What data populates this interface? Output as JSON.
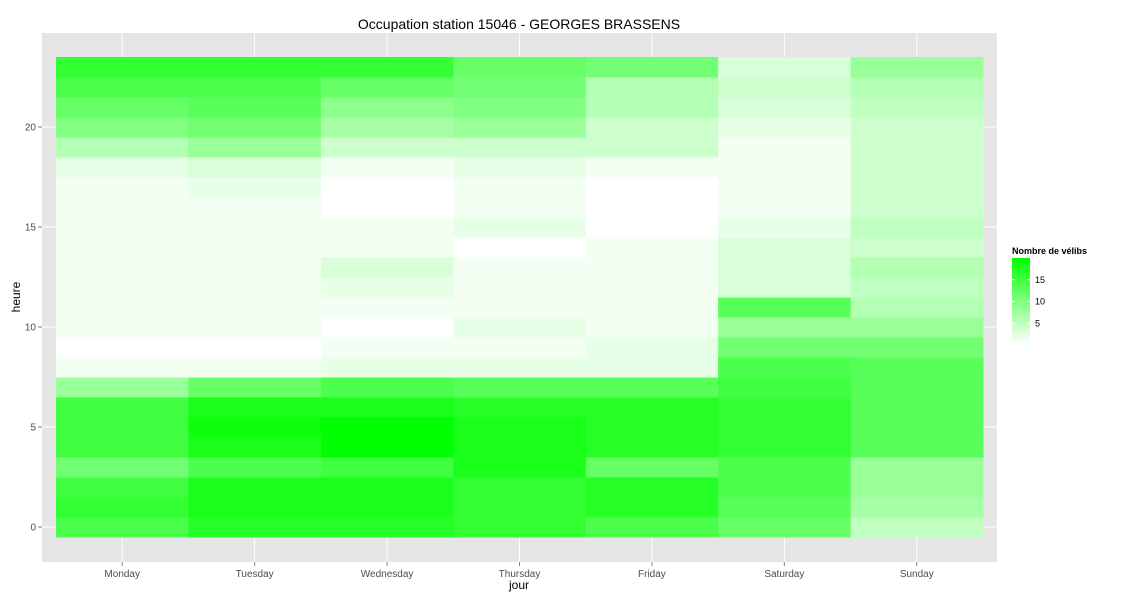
{
  "chart_data": {
    "type": "heatmap",
    "title": "Occupation station 15046 - GEORGES BRASSENS",
    "xlabel": "jour",
    "ylabel": "heure",
    "x_categories": [
      "Monday",
      "Tuesday",
      "Wednesday",
      "Thursday",
      "Friday",
      "Saturday",
      "Sunday"
    ],
    "y_hours": [
      0,
      1,
      2,
      3,
      4,
      5,
      6,
      7,
      8,
      9,
      10,
      11,
      12,
      13,
      14,
      15,
      16,
      17,
      18,
      19,
      20,
      21,
      22,
      23
    ],
    "y_ticks": [
      0,
      5,
      10,
      15,
      20
    ],
    "ylim": [
      -0.5,
      23.5
    ],
    "legend": {
      "title": "Nombre de vélibs",
      "ticks": [
        5,
        10,
        15
      ],
      "low_color": "#ffffff",
      "high_color": "#00ff00",
      "range": [
        0,
        20
      ],
      "position": "right"
    },
    "grid": true,
    "values": [
      [
        14,
        17,
        17,
        16,
        14,
        12,
        5
      ],
      [
        16,
        18,
        18,
        16,
        17,
        13,
        7
      ],
      [
        15,
        18,
        18,
        16,
        17,
        14,
        8
      ],
      [
        11,
        14,
        15,
        18,
        12,
        14,
        8
      ],
      [
        15,
        18,
        20,
        18,
        17,
        16,
        13
      ],
      [
        15,
        19,
        20,
        18,
        17,
        16,
        13
      ],
      [
        15,
        18,
        18,
        17,
        17,
        16,
        13
      ],
      [
        8,
        12,
        14,
        13,
        13,
        15,
        13
      ],
      [
        1,
        1,
        2,
        2,
        2,
        14,
        13
      ],
      [
        0,
        0,
        1,
        1,
        2,
        11,
        11
      ],
      [
        1,
        1,
        0,
        2,
        1,
        8,
        8
      ],
      [
        1,
        1,
        1,
        1,
        1,
        13,
        6
      ],
      [
        1,
        1,
        2,
        1,
        1,
        3,
        5
      ],
      [
        1,
        1,
        3,
        1,
        1,
        3,
        6
      ],
      [
        1,
        1,
        1,
        0,
        1,
        3,
        4
      ],
      [
        1,
        1,
        1,
        2,
        0,
        2,
        5
      ],
      [
        1,
        1,
        0,
        1,
        0,
        1,
        4
      ],
      [
        1,
        2,
        0,
        1,
        0,
        1,
        4
      ],
      [
        2,
        3,
        1,
        2,
        1,
        1,
        4
      ],
      [
        6,
        8,
        4,
        4,
        4,
        1,
        4
      ],
      [
        10,
        11,
        7,
        8,
        4,
        2,
        4
      ],
      [
        12,
        13,
        9,
        10,
        6,
        3,
        5
      ],
      [
        14,
        14,
        12,
        11,
        6,
        4,
        6
      ],
      [
        16,
        16,
        16,
        12,
        11,
        3,
        8
      ]
    ]
  }
}
